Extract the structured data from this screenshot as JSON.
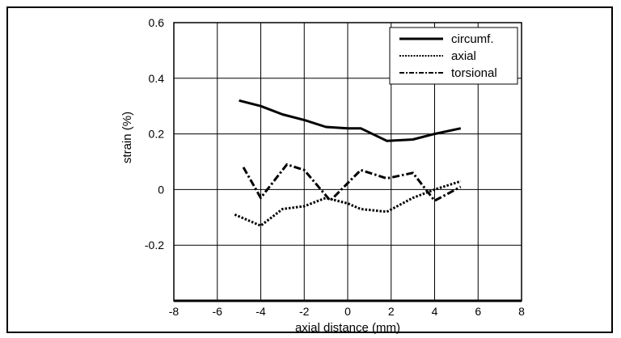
{
  "chart_data": {
    "type": "line",
    "title": "",
    "xlabel": "axial distance (mm)",
    "ylabel": "strain (%)",
    "xlim": [
      -8,
      8
    ],
    "ylim": [
      -0.4,
      0.6
    ],
    "xticks": [
      -8,
      -6,
      -4,
      -2,
      0,
      2,
      4,
      6,
      8
    ],
    "yticks": [
      {
        "value": 0.6,
        "label": "0.6"
      },
      {
        "value": 0.4,
        "label": "0.4"
      },
      {
        "value": 0.2,
        "label": "0.2"
      },
      {
        "value": 0,
        "label": "0"
      },
      {
        "value": -0.2,
        "label": "-0.2"
      }
    ],
    "grid": true,
    "legend_position": "top-right",
    "series": [
      {
        "name": "circumf.",
        "style": "solid",
        "color": "#000000",
        "points": [
          [
            -5,
            0.32
          ],
          [
            -4,
            0.3
          ],
          [
            -3,
            0.27
          ],
          [
            -2,
            0.25
          ],
          [
            -1,
            0.225
          ],
          [
            0,
            0.22
          ],
          [
            0.6,
            0.22
          ],
          [
            1.8,
            0.175
          ],
          [
            3,
            0.18
          ],
          [
            4,
            0.2
          ],
          [
            5.2,
            0.22
          ]
        ]
      },
      {
        "name": "axial",
        "style": "dotted",
        "color": "#000000",
        "points": [
          [
            -5.2,
            -0.09
          ],
          [
            -4,
            -0.13
          ],
          [
            -3,
            -0.07
          ],
          [
            -2,
            -0.06
          ],
          [
            -1,
            -0.03
          ],
          [
            0,
            -0.05
          ],
          [
            0.6,
            -0.07
          ],
          [
            1.8,
            -0.08
          ],
          [
            3,
            -0.03
          ],
          [
            4,
            0.0
          ],
          [
            5.2,
            0.03
          ]
        ]
      },
      {
        "name": "torsional",
        "style": "dashdot",
        "color": "#000000",
        "points": [
          [
            -4.8,
            0.08
          ],
          [
            -4,
            -0.03
          ],
          [
            -2.8,
            0.09
          ],
          [
            -2,
            0.07
          ],
          [
            -0.8,
            -0.04
          ],
          [
            0.6,
            0.07
          ],
          [
            1.8,
            0.04
          ],
          [
            3,
            0.06
          ],
          [
            4,
            -0.04
          ],
          [
            5.2,
            0.01
          ]
        ]
      }
    ]
  }
}
